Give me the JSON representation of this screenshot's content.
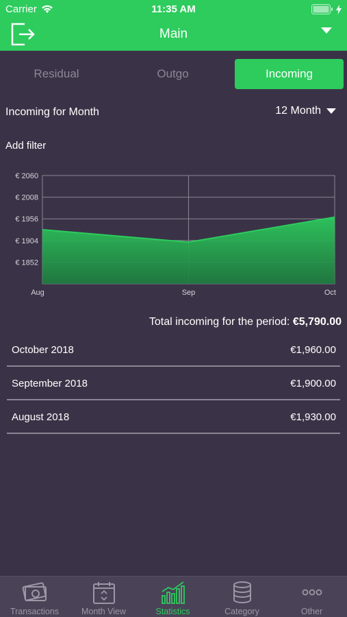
{
  "status": {
    "carrier": "Carrier",
    "time": "11:35 AM"
  },
  "nav": {
    "title": "Main"
  },
  "segments": [
    {
      "label": "Residual",
      "active": false
    },
    {
      "label": "Outgo",
      "active": false
    },
    {
      "label": "Incoming",
      "active": true
    }
  ],
  "period": {
    "label": "Incoming for Month",
    "selected": "12 Month"
  },
  "add_filter": "Add filter",
  "chart_data": {
    "type": "area",
    "categories": [
      "Aug",
      "Sep",
      "Oct"
    ],
    "series": [
      {
        "values": [
          1930,
          1900,
          1960
        ]
      }
    ],
    "yticks": [
      "€ 2060",
      "€ 2008",
      "€ 1956",
      "€ 1904",
      "€ 1852"
    ],
    "ytick_values": [
      2060,
      2008,
      1956,
      1904,
      1852
    ],
    "ylim": [
      1800,
      2060
    ],
    "grid": true,
    "fill_color": "#2dcc5d"
  },
  "total": {
    "label": "Total incoming for the period:",
    "value": "€5,790.00"
  },
  "rows": [
    {
      "label": "October 2018",
      "value": "€1,960.00"
    },
    {
      "label": "September 2018",
      "value": "€1,900.00"
    },
    {
      "label": "August 2018",
      "value": "€1,930.00"
    }
  ],
  "tabs": [
    {
      "label": "Transactions",
      "icon": "money-icon",
      "active": false
    },
    {
      "label": "Month View",
      "icon": "calendar-icon",
      "active": false
    },
    {
      "label": "Statistics",
      "icon": "chart-icon",
      "active": true
    },
    {
      "label": "Category",
      "icon": "database-icon",
      "active": false
    },
    {
      "label": "Other",
      "icon": "more-icon",
      "active": false
    }
  ],
  "colors": {
    "accent": "#2dcc5d",
    "background": "#3a3347",
    "tab_bar": "#4a4357"
  }
}
